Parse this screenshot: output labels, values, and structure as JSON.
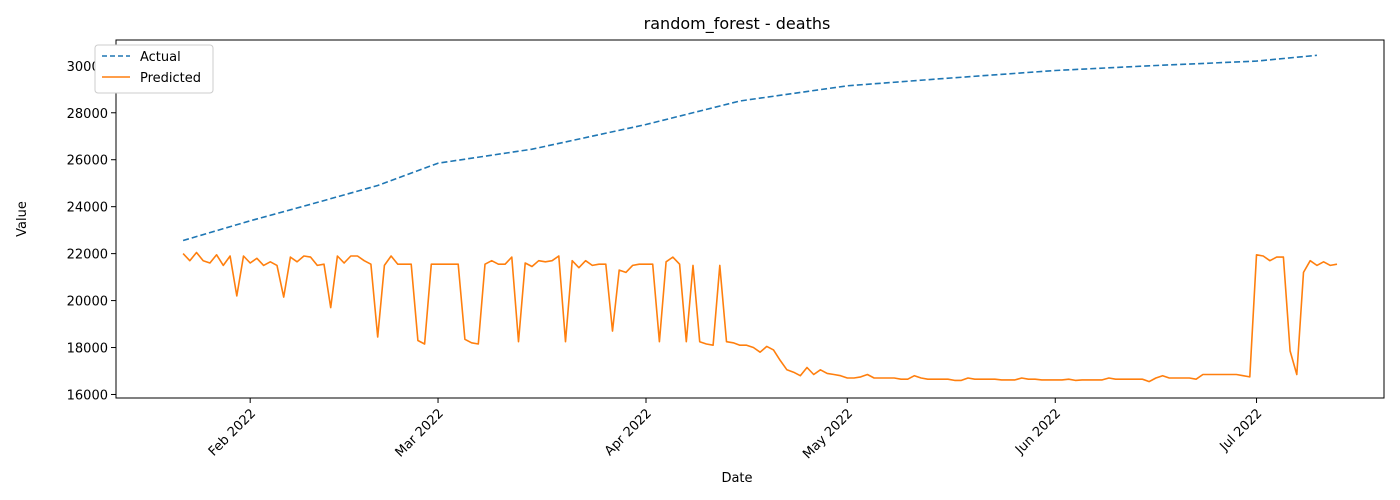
{
  "chart_data": {
    "type": "line",
    "title": "random_forest - deaths",
    "xlabel": "Date",
    "ylabel": "Value",
    "x_start": "2022-01-22",
    "x_end": "2022-07-10",
    "xlim": [
      "2022-01-12",
      "2022-07-20"
    ],
    "ylim": [
      15850,
      31100
    ],
    "x_ticks": [
      {
        "date": "2022-02-01",
        "label": "Feb 2022"
      },
      {
        "date": "2022-03-01",
        "label": "Mar 2022"
      },
      {
        "date": "2022-04-01",
        "label": "Apr 2022"
      },
      {
        "date": "2022-05-01",
        "label": "May 2022"
      },
      {
        "date": "2022-06-01",
        "label": "Jun 2022"
      },
      {
        "date": "2022-07-01",
        "label": "Jul 2022"
      }
    ],
    "y_ticks": [
      16000,
      18000,
      20000,
      22000,
      24000,
      26000,
      28000,
      30000
    ],
    "grid": false,
    "legend_position": "top-left",
    "series": [
      {
        "name": "Actual",
        "color": "#1f77b4",
        "style": "dashed",
        "points": [
          [
            "2022-01-22",
            22560
          ],
          [
            "2022-02-01",
            23400
          ],
          [
            "2022-02-10",
            24100
          ],
          [
            "2022-02-20",
            24900
          ],
          [
            "2022-03-01",
            25850
          ],
          [
            "2022-03-15",
            26450
          ],
          [
            "2022-04-01",
            27500
          ],
          [
            "2022-04-15",
            28500
          ],
          [
            "2022-05-01",
            29150
          ],
          [
            "2022-05-15",
            29450
          ],
          [
            "2022-06-01",
            29800
          ],
          [
            "2022-06-15",
            30000
          ],
          [
            "2022-07-01",
            30200
          ],
          [
            "2022-07-10",
            30450
          ]
        ]
      },
      {
        "name": "Predicted",
        "color": "#ff7f0e",
        "style": "solid",
        "values": [
          22000,
          21700,
          22050,
          21700,
          21600,
          21950,
          21500,
          21900,
          20200,
          21900,
          21600,
          21800,
          21500,
          21650,
          21500,
          20150,
          21850,
          21650,
          21900,
          21850,
          21500,
          21550,
          19700,
          21900,
          21600,
          21900,
          21900,
          21700,
          21550,
          18450,
          21500,
          21900,
          21550,
          21550,
          21550,
          18300,
          18150,
          21550,
          21550,
          21550,
          21550,
          21550,
          18350,
          18200,
          18150,
          21550,
          21700,
          21550,
          21550,
          21850,
          18250,
          21600,
          21450,
          21700,
          21650,
          21700,
          21900,
          18250,
          21700,
          21400,
          21700,
          21500,
          21550,
          21550,
          18700,
          21300,
          21200,
          21500,
          21550,
          21550,
          21550,
          18250,
          21650,
          21850,
          21550,
          18250,
          21500,
          18250,
          18150,
          18100,
          21500,
          18250,
          18200,
          18100,
          18100,
          18000,
          17800,
          18050,
          17900,
          17450,
          17050,
          16950,
          16800,
          17150,
          16850,
          17050,
          16900,
          16850,
          16800,
          16700,
          16700,
          16750,
          16850,
          16700,
          16700,
          16700,
          16700,
          16650,
          16650,
          16800,
          16700,
          16650,
          16650,
          16650,
          16650,
          16600,
          16600,
          16700,
          16650,
          16650,
          16650,
          16650,
          16620,
          16620,
          16620,
          16700,
          16650,
          16650,
          16620,
          16620,
          16620,
          16620,
          16650,
          16600,
          16620,
          16620,
          16620,
          16620,
          16700,
          16650,
          16650,
          16650,
          16650,
          16650,
          16550,
          16700,
          16800,
          16700,
          16700,
          16700,
          16700,
          16650,
          16850,
          16850,
          16850,
          16850,
          16850,
          16850,
          16800,
          16750,
          21950,
          21900,
          21700,
          21850,
          21850,
          17850,
          16850,
          21200,
          21700,
          21500,
          21650,
          21500,
          21550
        ]
      }
    ]
  }
}
